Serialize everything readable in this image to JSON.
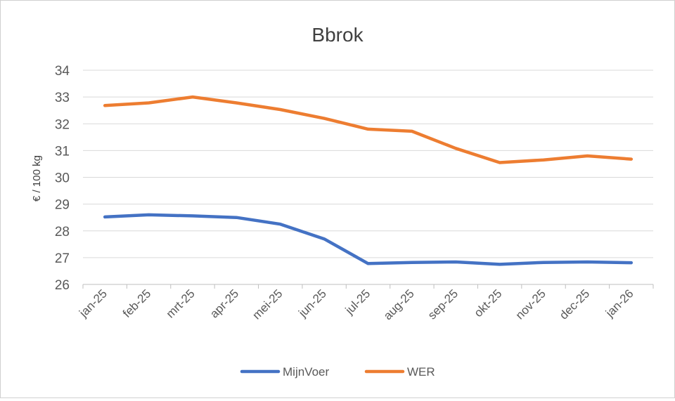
{
  "chart_data": {
    "type": "line",
    "title": "Bbrok",
    "ylabel": "€ / 100 kg",
    "xlabel": "",
    "categories": [
      "jan-25",
      "feb-25",
      "mrt-25",
      "apr-25",
      "mei-25",
      "jun-25",
      "jul-25",
      "aug-25",
      "sep-25",
      "okt-25",
      "nov-25",
      "dec-25",
      "jan-26"
    ],
    "ylim": [
      26,
      34
    ],
    "yticks": [
      26,
      27,
      28,
      29,
      30,
      31,
      32,
      33,
      34
    ],
    "grid": true,
    "legend_position": "bottom",
    "series": [
      {
        "name": "MijnVoer",
        "color": "#4472c4",
        "values": [
          28.52,
          28.6,
          28.56,
          28.5,
          28.25,
          27.7,
          26.78,
          26.82,
          26.84,
          26.75,
          26.82,
          26.84,
          26.81
        ]
      },
      {
        "name": "WER",
        "color": "#ed7d31",
        "values": [
          32.68,
          32.78,
          33.0,
          32.78,
          32.53,
          32.2,
          31.8,
          31.72,
          31.08,
          30.55,
          30.65,
          30.8,
          30.68
        ]
      }
    ]
  }
}
